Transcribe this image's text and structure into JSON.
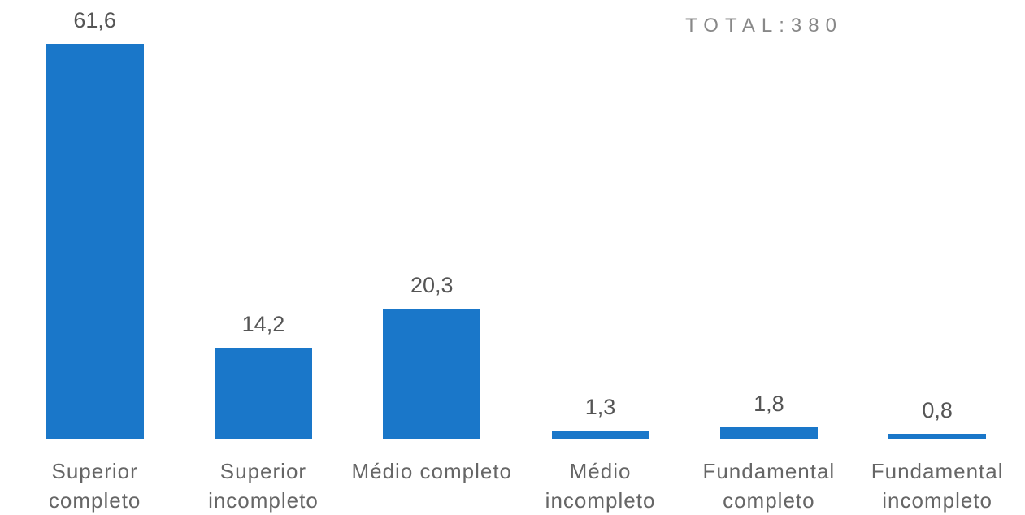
{
  "chart_data": {
    "type": "bar",
    "annotation": "TOTAL:380",
    "categories": [
      "Superior completo",
      "Superior incompleto",
      "Médio completo",
      "Médio incompleto",
      "Fundamental completo",
      "Fundamental incompleto"
    ],
    "values": [
      61.6,
      14.2,
      20.3,
      1.3,
      1.8,
      0.8
    ],
    "value_labels": [
      "61,6",
      "14,2",
      "20,3",
      "1,3",
      "1,8",
      "0,8"
    ],
    "color": "#1a77c9"
  }
}
